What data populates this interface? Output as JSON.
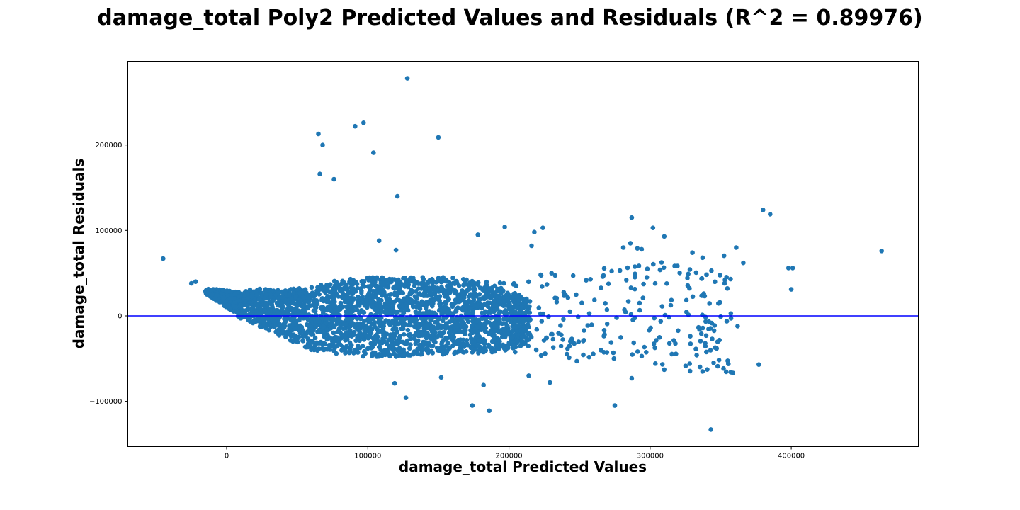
{
  "chart_data": {
    "type": "scatter",
    "title": "damage_total Poly2 Predicted Values and Residuals (R^2 = 0.89976)",
    "xlabel": "damage_total Predicted Values",
    "ylabel": "damage_total Residuals",
    "xlim": [
      -70000,
      490000
    ],
    "ylim": [
      -153000,
      298000
    ],
    "xticks": [
      0,
      100000,
      200000,
      300000,
      400000
    ],
    "xtick_labels": [
      "0",
      "100000",
      "200000",
      "300000",
      "400000"
    ],
    "yticks": [
      -100000,
      0,
      100000,
      200000
    ],
    "ytick_labels": [
      "−100000",
      "0",
      "100000",
      "200000"
    ],
    "grid": false,
    "point_color": "#1f77b4",
    "reference_line": {
      "y": 0,
      "color": "#0000ff"
    },
    "outliers": [
      {
        "x": -45000,
        "y": 67000
      },
      {
        "x": -25000,
        "y": 38000
      },
      {
        "x": -22000,
        "y": 40000
      },
      {
        "x": 65000,
        "y": 213000
      },
      {
        "x": 68000,
        "y": 200000
      },
      {
        "x": 66000,
        "y": 166000
      },
      {
        "x": 76000,
        "y": 160000
      },
      {
        "x": 91000,
        "y": 222000
      },
      {
        "x": 97000,
        "y": 226000
      },
      {
        "x": 104000,
        "y": 191000
      },
      {
        "x": 128000,
        "y": 278000
      },
      {
        "x": 150000,
        "y": 209000
      },
      {
        "x": 121000,
        "y": 140000
      },
      {
        "x": 108000,
        "y": 88000
      },
      {
        "x": 120000,
        "y": 77000
      },
      {
        "x": 178000,
        "y": 95000
      },
      {
        "x": 197000,
        "y": 104000
      },
      {
        "x": 216000,
        "y": 82000
      },
      {
        "x": 218000,
        "y": 98000
      },
      {
        "x": 224000,
        "y": 103000
      },
      {
        "x": 287000,
        "y": 115000
      },
      {
        "x": 302000,
        "y": 103000
      },
      {
        "x": 310000,
        "y": 93000
      },
      {
        "x": 286000,
        "y": 85000
      },
      {
        "x": 281000,
        "y": 80000
      },
      {
        "x": 291000,
        "y": 79000
      },
      {
        "x": 294000,
        "y": 78000
      },
      {
        "x": 330000,
        "y": 74000
      },
      {
        "x": 361000,
        "y": 80000
      },
      {
        "x": 366000,
        "y": 62000
      },
      {
        "x": 380000,
        "y": 124000
      },
      {
        "x": 385000,
        "y": 119000
      },
      {
        "x": 398000,
        "y": 56000
      },
      {
        "x": 401000,
        "y": 56000
      },
      {
        "x": 400000,
        "y": 31000
      },
      {
        "x": 464000,
        "y": 76000
      },
      {
        "x": 357000,
        "y": 43000
      },
      {
        "x": 338000,
        "y": 26000
      },
      {
        "x": 327000,
        "y": 49000
      },
      {
        "x": 298000,
        "y": 55000
      },
      {
        "x": 337000,
        "y": 1000
      },
      {
        "x": 350000,
        "y": -1000
      },
      {
        "x": 362000,
        "y": -12000
      },
      {
        "x": 335000,
        "y": -16000
      },
      {
        "x": 344000,
        "y": -27000
      },
      {
        "x": 333000,
        "y": -46000
      },
      {
        "x": 328000,
        "y": -56000
      },
      {
        "x": 345000,
        "y": -55000
      },
      {
        "x": 343000,
        "y": -133000
      },
      {
        "x": 377000,
        "y": -57000
      },
      {
        "x": 310000,
        "y": -63000
      },
      {
        "x": 287000,
        "y": -73000
      },
      {
        "x": 275000,
        "y": -105000
      },
      {
        "x": 174000,
        "y": -105000
      },
      {
        "x": 186000,
        "y": -111000
      },
      {
        "x": 182000,
        "y": -81000
      },
      {
        "x": 127000,
        "y": -96000
      },
      {
        "x": 119000,
        "y": -79000
      },
      {
        "x": 152000,
        "y": -72000
      },
      {
        "x": 229000,
        "y": -78000
      },
      {
        "x": 214000,
        "y": -70000
      }
    ],
    "dense_region": [
      {
        "x": -15000,
        "lo": 26000,
        "hi": 32000
      },
      {
        "x": 0,
        "lo": 10000,
        "hi": 30000
      },
      {
        "x": 10000,
        "lo": -3000,
        "hi": 28000
      },
      {
        "x": 20000,
        "lo": -10000,
        "hi": 32000
      },
      {
        "x": 40000,
        "lo": -25000,
        "hi": 30000
      },
      {
        "x": 60000,
        "lo": -40000,
        "hi": 35000
      },
      {
        "x": 80000,
        "lo": -45000,
        "hi": 42000
      },
      {
        "x": 100000,
        "lo": -48000,
        "hi": 45000
      },
      {
        "x": 120000,
        "lo": -48000,
        "hi": 45000
      },
      {
        "x": 140000,
        "lo": -45000,
        "hi": 45000
      },
      {
        "x": 160000,
        "lo": -45000,
        "hi": 45000
      },
      {
        "x": 180000,
        "lo": -45000,
        "hi": 40000
      },
      {
        "x": 200000,
        "lo": -40000,
        "hi": 30000
      },
      {
        "x": 215000,
        "lo": -30000,
        "hi": 20000
      }
    ]
  }
}
